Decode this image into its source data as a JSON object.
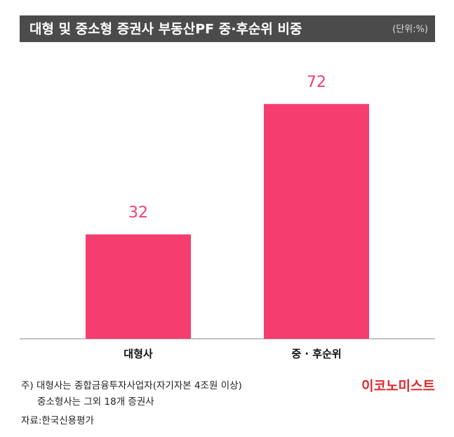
{
  "chart_data": {
    "type": "bar",
    "title": "대형 및 중소형 증권사 부동산PF 중·후순위 비중",
    "unit": "(단위:%)",
    "categories": [
      "대형사",
      "중 · 후순위"
    ],
    "values": [
      32,
      72
    ],
    "color": "#f53d6f",
    "ylim": [
      0,
      80
    ],
    "notes": [
      "주) 대형사는 종합금융투자사업자(자기자본 4조원 이상)",
      "중소형사는 그외 18개 증권사"
    ],
    "source": "자료:한국신용평가",
    "logo": "이코노미스트"
  }
}
